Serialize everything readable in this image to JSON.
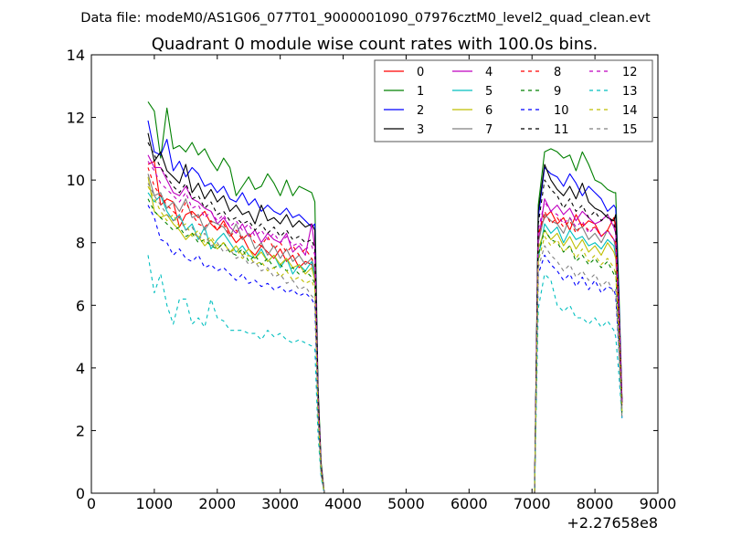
{
  "chart_data": {
    "type": "line",
    "file_caption": "Data file: modeM0/AS1G06_077T01_9000001090_07976cztM0_level2_quad_clean.evt",
    "title": "Quadrant 0 module wise count rates with 100.0s bins.",
    "x_offset_label": "+2.27658e8",
    "xlim": [
      0,
      9000
    ],
    "ylim": [
      0,
      14
    ],
    "xticks": [
      0,
      1000,
      2000,
      3000,
      4000,
      5000,
      6000,
      7000,
      8000,
      9000
    ],
    "yticks": [
      0,
      2,
      4,
      6,
      8,
      10,
      12,
      14
    ],
    "grid": false,
    "legend_placement": "top-right",
    "legend_columns": 4,
    "colors": {
      "red": "#ff0000",
      "green": "#008000",
      "blue": "#0000ff",
      "black": "#000000",
      "magenta": "#bf00bf",
      "cyan": "#00bfbf",
      "olive": "#bfbf00",
      "gray": "#808080"
    },
    "seg1_x": [
      900,
      1000,
      1100,
      1200,
      1300,
      1400,
      1500,
      1600,
      1700,
      1800,
      1900,
      2000,
      2100,
      2200,
      2300,
      2400,
      2500,
      2600,
      2700,
      2800,
      2900,
      3000,
      3100,
      3200,
      3300,
      3400,
      3500,
      3550,
      3600,
      3650,
      3700
    ],
    "seg2_x": [
      3800,
      4200,
      4600,
      5000,
      5400,
      5800,
      6200,
      6600,
      7000,
      7040
    ],
    "seg3_x": [
      7040,
      7100,
      7200,
      7300,
      7400,
      7500,
      7600,
      7700,
      7800,
      7900,
      8000,
      8100,
      8200,
      8300,
      8330,
      8380,
      8430
    ],
    "series": [
      {
        "name": "0",
        "style": "solid",
        "color": "#ff0000",
        "seg1_y": [
          10.5,
          10.6,
          9.2,
          9.4,
          9.3,
          8.5,
          8.9,
          9.0,
          8.8,
          9.0,
          8.6,
          8.4,
          8.7,
          8.3,
          8.0,
          8.2,
          7.8,
          7.6,
          7.9,
          7.7,
          7.5,
          7.8,
          7.4,
          7.6,
          7.2,
          7.4,
          7.3,
          7.0,
          3.0,
          0.8,
          0.0
        ],
        "seg2_y": [
          0,
          0,
          0,
          0,
          0,
          0,
          0,
          0,
          0,
          0
        ],
        "seg3_y": [
          0.0,
          8.3,
          8.8,
          9.0,
          8.6,
          8.8,
          8.4,
          8.9,
          8.5,
          8.7,
          8.6,
          8.2,
          8.4,
          8.8,
          8.5,
          6.0,
          3.0
        ]
      },
      {
        "name": "1",
        "style": "solid",
        "color": "#008000",
        "seg1_y": [
          12.5,
          12.2,
          10.7,
          12.3,
          11.0,
          11.1,
          10.9,
          11.2,
          10.8,
          11.0,
          10.6,
          10.3,
          10.7,
          10.4,
          9.5,
          9.8,
          10.1,
          9.7,
          9.8,
          10.2,
          9.9,
          9.5,
          10.0,
          9.5,
          9.8,
          9.7,
          9.6,
          9.3,
          3.5,
          1.0,
          0.0
        ],
        "seg2_y": [
          0,
          0,
          0,
          0,
          0,
          0,
          0,
          0,
          0,
          0
        ],
        "seg3_y": [
          0.0,
          9.2,
          10.9,
          11.0,
          10.9,
          10.7,
          10.8,
          10.3,
          10.9,
          10.5,
          10.0,
          9.9,
          9.7,
          9.6,
          9.6,
          6.5,
          3.0
        ]
      },
      {
        "name": "2",
        "style": "solid",
        "color": "#0000ff",
        "seg1_y": [
          11.9,
          10.9,
          10.8,
          11.3,
          10.3,
          10.6,
          10.1,
          10.4,
          10.2,
          9.8,
          9.9,
          9.6,
          9.8,
          9.4,
          9.3,
          9.6,
          9.2,
          9.4,
          9.0,
          9.2,
          9.0,
          8.9,
          9.1,
          8.8,
          8.9,
          8.7,
          8.5,
          8.6,
          3.2,
          0.9,
          0.0
        ],
        "seg2_y": [
          0,
          0,
          0,
          0,
          0,
          0,
          0,
          0,
          0,
          0
        ],
        "seg3_y": [
          0.0,
          8.8,
          10.4,
          10.2,
          10.1,
          9.8,
          10.2,
          9.9,
          9.5,
          9.8,
          9.6,
          9.4,
          9.0,
          9.2,
          9.1,
          6.2,
          3.0
        ]
      },
      {
        "name": "3",
        "style": "solid",
        "color": "#000000",
        "seg1_y": [
          11.5,
          10.6,
          10.9,
          10.3,
          10.1,
          9.9,
          10.5,
          9.6,
          9.9,
          9.4,
          9.7,
          9.3,
          9.5,
          9.0,
          9.2,
          8.9,
          9.0,
          8.6,
          9.2,
          8.7,
          8.8,
          8.6,
          8.9,
          8.5,
          8.7,
          8.5,
          8.6,
          8.4,
          3.3,
          0.9,
          0.0
        ],
        "seg2_y": [
          0,
          0,
          0,
          0,
          0,
          0,
          0,
          0,
          0,
          0
        ],
        "seg3_y": [
          0.0,
          9.0,
          10.5,
          10.0,
          9.7,
          9.5,
          9.8,
          9.4,
          9.9,
          9.3,
          9.1,
          9.0,
          8.8,
          8.7,
          8.9,
          6.0,
          2.9
        ]
      },
      {
        "name": "4",
        "style": "solid",
        "color": "#bf00bf",
        "seg1_y": [
          10.8,
          10.4,
          10.4,
          10.0,
          9.6,
          9.5,
          9.8,
          9.4,
          9.3,
          9.1,
          9.0,
          8.6,
          8.8,
          8.5,
          8.3,
          8.6,
          8.2,
          8.4,
          8.0,
          8.3,
          8.1,
          8.0,
          8.3,
          7.7,
          7.9,
          7.6,
          8.6,
          7.8,
          3.1,
          0.8,
          0.0
        ],
        "seg2_y": [
          0,
          0,
          0,
          0,
          0,
          0,
          0,
          0,
          0,
          0
        ],
        "seg3_y": [
          0.0,
          8.0,
          9.4,
          9.0,
          9.2,
          8.9,
          9.1,
          8.7,
          9.0,
          8.8,
          8.6,
          8.7,
          8.9,
          8.5,
          8.3,
          5.8,
          2.9
        ]
      },
      {
        "name": "5",
        "style": "solid",
        "color": "#00bfbf",
        "seg1_y": [
          9.6,
          9.3,
          9.5,
          9.0,
          8.7,
          8.9,
          8.4,
          8.6,
          8.1,
          8.5,
          7.8,
          8.1,
          8.3,
          8.0,
          7.7,
          7.9,
          7.6,
          7.5,
          7.8,
          7.4,
          7.6,
          7.2,
          7.5,
          7.0,
          7.3,
          7.1,
          7.4,
          6.9,
          2.8,
          0.7,
          0.0
        ],
        "seg2_y": [
          0,
          0,
          0,
          0,
          0,
          0,
          0,
          0,
          0,
          0
        ],
        "seg3_y": [
          0.0,
          7.5,
          8.6,
          8.3,
          8.5,
          8.0,
          8.4,
          8.1,
          8.2,
          7.9,
          8.0,
          7.8,
          8.1,
          7.9,
          7.6,
          5.4,
          2.6
        ]
      },
      {
        "name": "6",
        "style": "solid",
        "color": "#bfbf00",
        "seg1_y": [
          10.1,
          9.0,
          8.8,
          8.9,
          8.6,
          8.4,
          8.1,
          8.3,
          8.2,
          7.9,
          8.1,
          7.8,
          8.0,
          7.7,
          7.9,
          7.6,
          7.8,
          7.5,
          7.7,
          7.4,
          7.6,
          7.3,
          7.5,
          7.2,
          7.3,
          7.0,
          7.2,
          6.8,
          2.7,
          0.7,
          0.0
        ],
        "seg2_y": [
          0,
          0,
          0,
          0,
          0,
          0,
          0,
          0,
          0,
          0
        ],
        "seg3_y": [
          0.0,
          7.8,
          8.4,
          8.1,
          8.3,
          7.9,
          8.2,
          7.8,
          8.1,
          7.7,
          7.9,
          7.6,
          8.0,
          7.7,
          7.5,
          5.3,
          2.6
        ]
      },
      {
        "name": "7",
        "style": "solid",
        "color": "#808080",
        "seg1_y": [
          10.2,
          9.5,
          9.6,
          9.1,
          9.3,
          9.0,
          9.4,
          8.8,
          8.9,
          8.4,
          8.7,
          8.6,
          8.5,
          8.2,
          8.6,
          8.1,
          8.3,
          7.8,
          8.0,
          7.6,
          7.9,
          7.5,
          7.8,
          7.4,
          7.6,
          7.3,
          7.5,
          7.1,
          2.9,
          0.8,
          0.0
        ],
        "seg2_y": [
          0,
          0,
          0,
          0,
          0,
          0,
          0,
          0,
          0,
          0
        ],
        "seg3_y": [
          0.0,
          8.0,
          8.9,
          8.7,
          8.6,
          8.3,
          8.8,
          8.4,
          8.5,
          8.1,
          8.3,
          8.0,
          8.4,
          8.1,
          7.8,
          5.5,
          2.7
        ]
      },
      {
        "name": "8",
        "style": "dashed",
        "color": "#ff0000",
        "seg1_y": [
          10.4,
          9.8,
          9.5,
          9.2,
          9.0,
          8.8,
          9.3,
          8.9,
          8.6,
          8.5,
          8.7,
          8.4,
          8.6,
          8.2,
          8.4,
          8.1,
          8.3,
          8.0,
          7.9,
          8.2,
          7.8,
          8.0,
          7.7,
          7.9,
          7.6,
          7.8,
          7.5,
          7.3,
          3.0,
          0.8,
          0.0
        ],
        "seg2_y": [
          0,
          0,
          0,
          0,
          0,
          0,
          0,
          0,
          0,
          0
        ],
        "seg3_y": [
          0.0,
          8.2,
          9.0,
          8.6,
          8.8,
          8.5,
          8.7,
          8.3,
          8.6,
          8.4,
          8.5,
          8.2,
          8.4,
          8.1,
          8.0,
          5.6,
          2.8
        ]
      },
      {
        "name": "9",
        "style": "dashed",
        "color": "#008000",
        "seg1_y": [
          9.4,
          9.0,
          8.8,
          8.6,
          8.4,
          8.5,
          8.2,
          8.3,
          8.0,
          8.1,
          7.9,
          7.8,
          8.0,
          7.7,
          7.6,
          7.8,
          7.4,
          7.6,
          7.3,
          7.5,
          7.2,
          7.3,
          7.1,
          7.2,
          7.0,
          7.1,
          6.9,
          6.7,
          2.7,
          0.7,
          0.0
        ],
        "seg2_y": [
          0,
          0,
          0,
          0,
          0,
          0,
          0,
          0,
          0,
          0
        ],
        "seg3_y": [
          0.0,
          7.6,
          8.4,
          8.1,
          8.0,
          7.7,
          7.9,
          7.4,
          7.6,
          7.3,
          7.5,
          7.2,
          7.4,
          7.0,
          7.1,
          5.0,
          2.5
        ]
      },
      {
        "name": "10",
        "style": "dashed",
        "color": "#0000ff",
        "seg1_y": [
          9.2,
          8.8,
          8.1,
          8.0,
          7.6,
          7.8,
          7.5,
          7.4,
          7.6,
          7.2,
          7.3,
          7.1,
          7.2,
          7.0,
          6.8,
          7.0,
          6.7,
          6.8,
          6.6,
          6.7,
          6.5,
          6.6,
          6.4,
          6.5,
          6.3,
          6.4,
          6.2,
          6.0,
          2.4,
          0.6,
          0.0
        ],
        "seg2_y": [
          0,
          0,
          0,
          0,
          0,
          0,
          0,
          0,
          0,
          0
        ],
        "seg3_y": [
          0.0,
          7.0,
          7.6,
          7.3,
          7.1,
          6.8,
          7.0,
          6.6,
          6.9,
          6.5,
          6.8,
          6.4,
          6.6,
          6.5,
          6.3,
          4.6,
          2.4
        ]
      },
      {
        "name": "11",
        "style": "dashed",
        "color": "#000000",
        "seg1_y": [
          11.2,
          10.8,
          10.4,
          10.1,
          9.8,
          9.6,
          9.9,
          9.4,
          9.5,
          9.1,
          9.3,
          8.9,
          9.0,
          8.7,
          8.8,
          8.6,
          8.7,
          8.4,
          8.6,
          8.3,
          8.5,
          8.2,
          8.4,
          8.1,
          8.2,
          8.0,
          8.1,
          7.8,
          3.2,
          0.8,
          0.0
        ],
        "seg2_y": [
          0,
          0,
          0,
          0,
          0,
          0,
          0,
          0,
          0,
          0
        ],
        "seg3_y": [
          0.0,
          8.6,
          10.0,
          9.7,
          9.5,
          9.1,
          9.4,
          9.0,
          9.2,
          8.8,
          9.0,
          8.7,
          8.9,
          8.6,
          8.4,
          5.9,
          2.9
        ]
      },
      {
        "name": "12",
        "style": "dashed",
        "color": "#bf00bf",
        "seg1_y": [
          10.6,
          10.3,
          9.9,
          9.7,
          9.5,
          9.3,
          9.6,
          9.1,
          9.2,
          8.8,
          9.0,
          8.7,
          8.9,
          8.5,
          8.7,
          8.4,
          8.6,
          8.2,
          8.4,
          8.1,
          8.3,
          8.0,
          8.2,
          7.9,
          8.0,
          7.8,
          7.9,
          7.6,
          3.1,
          0.8,
          0.0
        ],
        "seg2_y": [
          0,
          0,
          0,
          0,
          0,
          0,
          0,
          0,
          0,
          0
        ],
        "seg3_y": [
          0.0,
          8.4,
          9.3,
          9.0,
          8.9,
          8.6,
          8.8,
          8.5,
          8.7,
          8.3,
          8.5,
          8.2,
          8.4,
          8.1,
          8.0,
          5.7,
          2.8
        ]
      },
      {
        "name": "13",
        "style": "dashed",
        "color": "#00bfbf",
        "seg1_y": [
          7.6,
          6.4,
          7.0,
          6.0,
          5.4,
          6.2,
          6.2,
          5.4,
          5.6,
          5.3,
          6.2,
          5.6,
          5.5,
          5.2,
          5.2,
          5.2,
          5.1,
          5.1,
          4.9,
          5.2,
          5.0,
          5.1,
          4.9,
          4.8,
          4.9,
          4.8,
          4.7,
          4.6,
          1.9,
          0.5,
          0.0
        ],
        "seg2_y": [
          0,
          0,
          0,
          0,
          0,
          0,
          0,
          0,
          0,
          0
        ],
        "seg3_y": [
          0.0,
          5.9,
          7.0,
          6.8,
          6.0,
          5.8,
          6.0,
          5.6,
          5.6,
          5.4,
          5.6,
          5.3,
          5.5,
          5.2,
          5.0,
          3.8,
          2.4
        ]
      },
      {
        "name": "14",
        "style": "dashed",
        "color": "#bfbf00",
        "seg1_y": [
          9.8,
          9.4,
          9.0,
          8.7,
          8.9,
          8.5,
          8.6,
          8.2,
          8.4,
          8.0,
          8.2,
          7.9,
          8.0,
          7.7,
          7.8,
          7.5,
          7.6,
          7.3,
          7.4,
          7.1,
          7.2,
          6.9,
          7.1,
          6.8,
          6.9,
          6.7,
          6.8,
          6.5,
          2.6,
          0.7,
          0.0
        ],
        "seg2_y": [
          0,
          0,
          0,
          0,
          0,
          0,
          0,
          0,
          0,
          0
        ],
        "seg3_y": [
          0.0,
          7.4,
          8.2,
          7.9,
          8.1,
          7.7,
          7.9,
          7.5,
          7.8,
          7.4,
          7.6,
          7.3,
          7.5,
          7.2,
          7.0,
          5.0,
          2.5
        ]
      },
      {
        "name": "15",
        "style": "dashed",
        "color": "#808080",
        "seg1_y": [
          9.9,
          9.5,
          9.2,
          8.9,
          8.7,
          8.8,
          8.4,
          8.5,
          8.1,
          8.3,
          7.9,
          8.0,
          7.7,
          7.8,
          7.5,
          7.6,
          7.3,
          7.4,
          7.1,
          7.2,
          6.9,
          7.0,
          6.7,
          6.8,
          6.5,
          6.6,
          6.3,
          6.2,
          2.5,
          0.6,
          0.0
        ],
        "seg2_y": [
          0,
          0,
          0,
          0,
          0,
          0,
          0,
          0,
          0,
          0
        ],
        "seg3_y": [
          0.0,
          7.2,
          7.9,
          7.6,
          7.4,
          7.1,
          7.3,
          6.9,
          7.1,
          6.8,
          7.0,
          6.6,
          6.8,
          6.4,
          6.5,
          4.5,
          2.4
        ]
      }
    ]
  }
}
